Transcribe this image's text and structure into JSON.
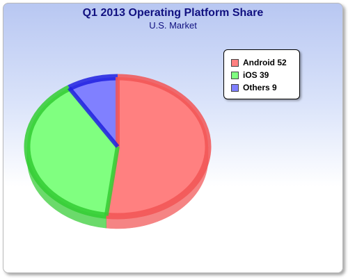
{
  "chart_data": {
    "type": "pie",
    "title": "Q1 2013 Operating Platform Share",
    "subtitle": "U.S. Market",
    "legend_position": "top-right",
    "slices": [
      {
        "label": "Android",
        "value": 52,
        "color": "#f25555",
        "top_color": "#ff8080",
        "legend_text": "Android 52"
      },
      {
        "label": "iOS",
        "value": 39,
        "color": "#33cc33",
        "top_color": "#80ff80",
        "legend_text": "iOS 39"
      },
      {
        "label": "Others",
        "value": 9,
        "color": "#2020e0",
        "top_color": "#8080ff",
        "legend_text": "Others 9"
      }
    ]
  }
}
